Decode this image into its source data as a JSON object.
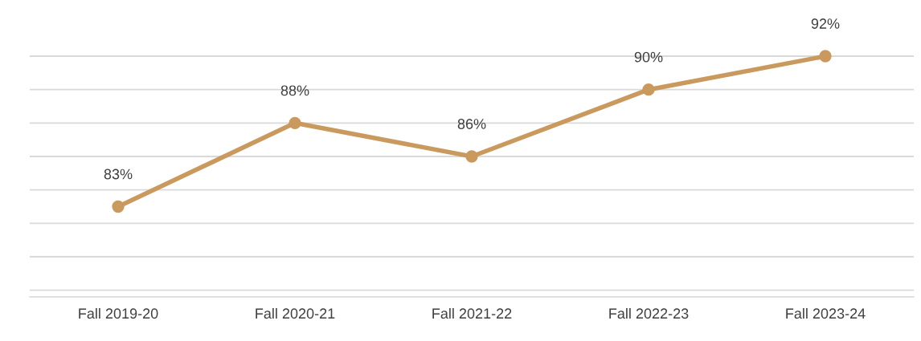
{
  "chart_data": {
    "type": "line",
    "categories": [
      "Fall 2019-20",
      "Fall 2020-21",
      "Fall 2021-22",
      "Fall 2022-23",
      "Fall 2023-24"
    ],
    "series": [
      {
        "color": "#c9995d",
        "values": [
          83,
          88,
          86,
          90,
          92
        ],
        "value_labels": [
          "83%",
          "88%",
          "86%",
          "90%",
          "92%"
        ]
      }
    ],
    "tick_labels": "x",
    "grid": "y",
    "marker": "circle",
    "line_style": "solid",
    "legend": false
  }
}
